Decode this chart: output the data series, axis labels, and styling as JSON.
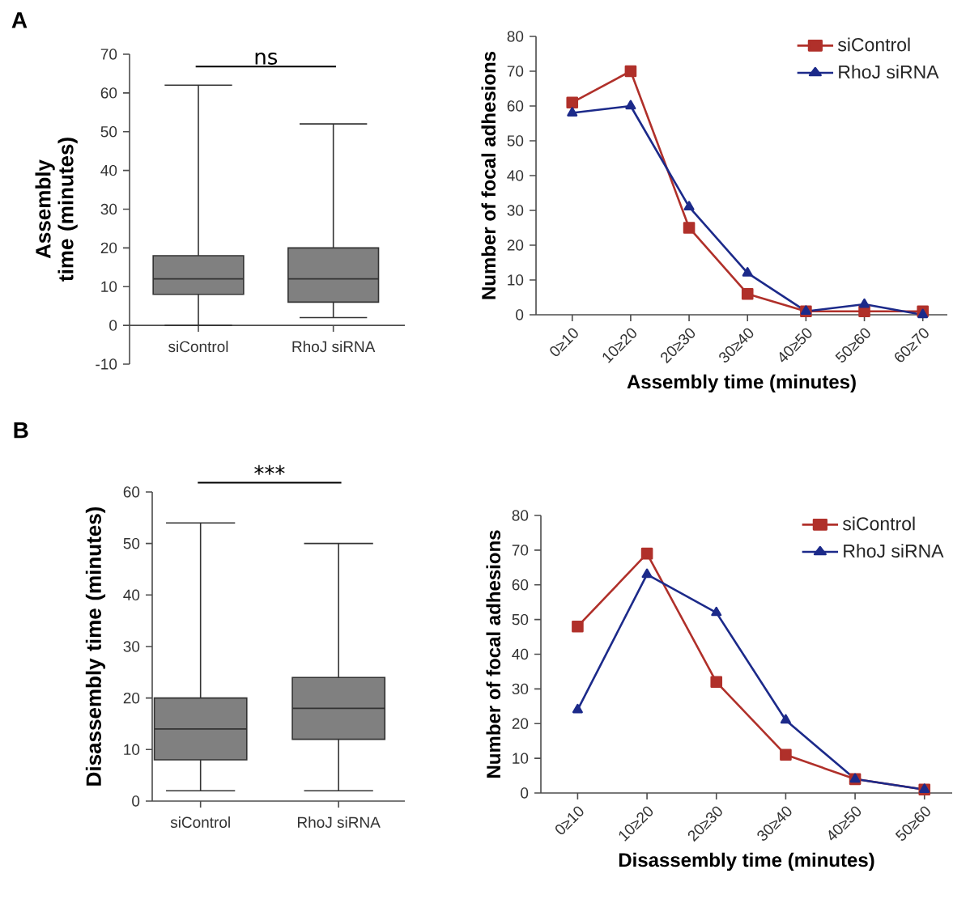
{
  "chart_data": [
    {
      "type": "box",
      "ylabel": "Assembly time (minutes)",
      "categories": [
        "siControl",
        "RhoJ siRNA"
      ],
      "color": "#808080",
      "boxes": [
        {
          "low": 0,
          "q1": 8,
          "median": 12,
          "q3": 18,
          "high": 62
        },
        {
          "low": 2,
          "q1": 6,
          "median": 12,
          "q3": 20,
          "high": 52
        }
      ],
      "ylim": [
        -10,
        70
      ],
      "yticks": [
        -10,
        0,
        10,
        20,
        30,
        40,
        50,
        60,
        70
      ],
      "annotations": [
        "A",
        "ns"
      ]
    },
    {
      "type": "line",
      "xlabel": "Assembly time (minutes)",
      "ylabel": "Number of focal adhesions",
      "categories": [
        "0≥10",
        "10≥20",
        "20≥30",
        "30≥40",
        "40≥50",
        "50≥60",
        "60≥70"
      ],
      "series": [
        {
          "name": "siControl",
          "color": "#b0302a",
          "marker": "square",
          "values": [
            61,
            70,
            25,
            6,
            1,
            1,
            1
          ]
        },
        {
          "name": "RhoJ siRNA",
          "color": "#1c2a8a",
          "marker": "triangle",
          "values": [
            58,
            60,
            31,
            12,
            1,
            3,
            0
          ]
        }
      ],
      "ylim": [
        0,
        80
      ],
      "yticks": [
        0,
        10,
        20,
        30,
        40,
        50,
        60,
        70,
        80
      ],
      "legend": "top right"
    },
    {
      "type": "box",
      "ylabel": "Disassembly time (minutes)",
      "categories": [
        "siControl",
        "RhoJ siRNA"
      ],
      "color": "#808080",
      "boxes": [
        {
          "low": 2,
          "q1": 8,
          "median": 14,
          "q3": 20,
          "high": 54
        },
        {
          "low": 2,
          "q1": 12,
          "median": 18,
          "q3": 24,
          "high": 50
        }
      ],
      "ylim": [
        0,
        60
      ],
      "yticks": [
        0,
        10,
        20,
        30,
        40,
        50,
        60
      ],
      "annotations": [
        "B",
        "***"
      ]
    },
    {
      "type": "line",
      "xlabel": "Disassembly time (minutes)",
      "ylabel": "Number of focal adhesions",
      "categories": [
        "0≥10",
        "10≥20",
        "20≥30",
        "30≥40",
        "40≥50",
        "50≥60"
      ],
      "series": [
        {
          "name": "siControl",
          "color": "#b0302a",
          "marker": "square",
          "values": [
            48,
            69,
            32,
            11,
            4,
            1
          ]
        },
        {
          "name": "RhoJ siRNA",
          "color": "#1c2a8a",
          "marker": "triangle",
          "values": [
            24,
            63,
            52,
            21,
            4,
            1
          ]
        }
      ],
      "ylim": [
        0,
        80
      ],
      "yticks": [
        0,
        10,
        20,
        30,
        40,
        50,
        60,
        70,
        80
      ],
      "legend": "top right"
    }
  ]
}
